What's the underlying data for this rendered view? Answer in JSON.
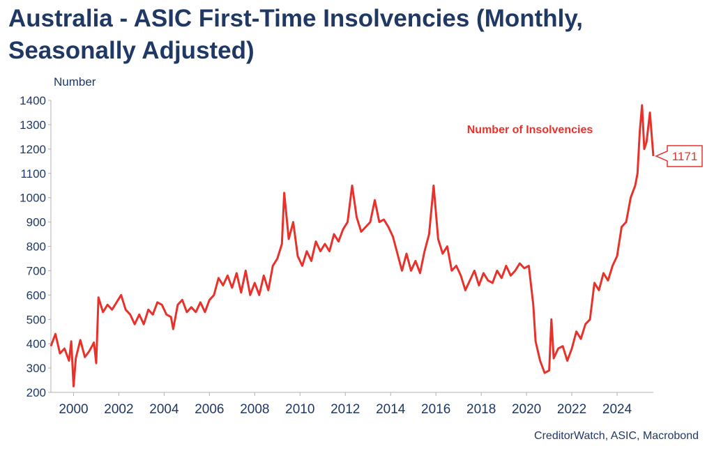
{
  "title": "Australia - ASIC First-Time Insolvencies (Monthly, Seasonally Adjusted)",
  "source": "CreditorWatch, ASIC, Macrobond",
  "colors": {
    "series": "#e8312a",
    "text": "#1f3864",
    "axis": "#b0b0b0"
  },
  "chart_data": {
    "type": "line",
    "ylabel": "Number",
    "ylim": [
      200,
      1400
    ],
    "yticks": [
      "200",
      "300",
      "400",
      "500",
      "600",
      "700",
      "800",
      "900",
      "1000",
      "1100",
      "1200",
      "1300",
      "1400"
    ],
    "xlim": [
      1999.0,
      2025.6
    ],
    "xticks": [
      "2000",
      "2002",
      "2004",
      "2006",
      "2008",
      "2010",
      "2012",
      "2014",
      "2016",
      "2018",
      "2020",
      "2022",
      "2024"
    ],
    "grid": false,
    "series": [
      {
        "name": "Number of Insolvencies",
        "last_value_label": "1171",
        "points": [
          [
            1999.0,
            390
          ],
          [
            1999.2,
            440
          ],
          [
            1999.4,
            360
          ],
          [
            1999.6,
            380
          ],
          [
            1999.8,
            330
          ],
          [
            1999.9,
            410
          ],
          [
            2000.0,
            225
          ],
          [
            2000.1,
            340
          ],
          [
            2000.3,
            415
          ],
          [
            2000.5,
            345
          ],
          [
            2000.7,
            370
          ],
          [
            2000.9,
            405
          ],
          [
            2001.0,
            320
          ],
          [
            2001.1,
            590
          ],
          [
            2001.3,
            530
          ],
          [
            2001.5,
            560
          ],
          [
            2001.7,
            540
          ],
          [
            2001.9,
            570
          ],
          [
            2002.1,
            600
          ],
          [
            2002.3,
            540
          ],
          [
            2002.5,
            520
          ],
          [
            2002.7,
            480
          ],
          [
            2002.9,
            520
          ],
          [
            2003.1,
            480
          ],
          [
            2003.3,
            540
          ],
          [
            2003.5,
            520
          ],
          [
            2003.7,
            570
          ],
          [
            2003.9,
            560
          ],
          [
            2004.1,
            520
          ],
          [
            2004.3,
            510
          ],
          [
            2004.4,
            460
          ],
          [
            2004.6,
            560
          ],
          [
            2004.8,
            580
          ],
          [
            2005.0,
            530
          ],
          [
            2005.2,
            550
          ],
          [
            2005.4,
            530
          ],
          [
            2005.6,
            570
          ],
          [
            2005.8,
            530
          ],
          [
            2006.0,
            580
          ],
          [
            2006.2,
            600
          ],
          [
            2006.4,
            670
          ],
          [
            2006.6,
            640
          ],
          [
            2006.8,
            680
          ],
          [
            2007.0,
            630
          ],
          [
            2007.2,
            690
          ],
          [
            2007.4,
            610
          ],
          [
            2007.6,
            700
          ],
          [
            2007.8,
            600
          ],
          [
            2008.0,
            650
          ],
          [
            2008.2,
            600
          ],
          [
            2008.4,
            680
          ],
          [
            2008.6,
            620
          ],
          [
            2008.8,
            720
          ],
          [
            2009.0,
            750
          ],
          [
            2009.2,
            810
          ],
          [
            2009.3,
            1020
          ],
          [
            2009.5,
            830
          ],
          [
            2009.7,
            900
          ],
          [
            2009.9,
            760
          ],
          [
            2010.1,
            720
          ],
          [
            2010.3,
            780
          ],
          [
            2010.5,
            740
          ],
          [
            2010.7,
            820
          ],
          [
            2010.9,
            780
          ],
          [
            2011.1,
            810
          ],
          [
            2011.3,
            780
          ],
          [
            2011.5,
            850
          ],
          [
            2011.7,
            820
          ],
          [
            2011.9,
            870
          ],
          [
            2012.1,
            900
          ],
          [
            2012.3,
            1050
          ],
          [
            2012.5,
            920
          ],
          [
            2012.7,
            860
          ],
          [
            2012.9,
            880
          ],
          [
            2013.1,
            900
          ],
          [
            2013.3,
            990
          ],
          [
            2013.5,
            900
          ],
          [
            2013.7,
            910
          ],
          [
            2013.9,
            880
          ],
          [
            2014.1,
            840
          ],
          [
            2014.3,
            770
          ],
          [
            2014.5,
            700
          ],
          [
            2014.7,
            770
          ],
          [
            2014.9,
            700
          ],
          [
            2015.1,
            740
          ],
          [
            2015.3,
            690
          ],
          [
            2015.5,
            780
          ],
          [
            2015.7,
            850
          ],
          [
            2015.9,
            1050
          ],
          [
            2016.1,
            830
          ],
          [
            2016.3,
            770
          ],
          [
            2016.5,
            800
          ],
          [
            2016.7,
            700
          ],
          [
            2016.9,
            720
          ],
          [
            2017.1,
            680
          ],
          [
            2017.3,
            620
          ],
          [
            2017.5,
            660
          ],
          [
            2017.7,
            700
          ],
          [
            2017.9,
            640
          ],
          [
            2018.1,
            690
          ],
          [
            2018.3,
            660
          ],
          [
            2018.5,
            650
          ],
          [
            2018.7,
            700
          ],
          [
            2018.9,
            670
          ],
          [
            2019.1,
            720
          ],
          [
            2019.3,
            680
          ],
          [
            2019.5,
            700
          ],
          [
            2019.7,
            730
          ],
          [
            2019.9,
            710
          ],
          [
            2020.1,
            720
          ],
          [
            2020.3,
            560
          ],
          [
            2020.4,
            410
          ],
          [
            2020.6,
            330
          ],
          [
            2020.8,
            280
          ],
          [
            2021.0,
            290
          ],
          [
            2021.1,
            500
          ],
          [
            2021.2,
            340
          ],
          [
            2021.4,
            380
          ],
          [
            2021.6,
            390
          ],
          [
            2021.8,
            330
          ],
          [
            2022.0,
            380
          ],
          [
            2022.2,
            450
          ],
          [
            2022.4,
            420
          ],
          [
            2022.6,
            480
          ],
          [
            2022.8,
            500
          ],
          [
            2023.0,
            650
          ],
          [
            2023.2,
            620
          ],
          [
            2023.4,
            690
          ],
          [
            2023.6,
            660
          ],
          [
            2023.8,
            720
          ],
          [
            2024.0,
            760
          ],
          [
            2024.2,
            880
          ],
          [
            2024.4,
            900
          ],
          [
            2024.6,
            1000
          ],
          [
            2024.8,
            1050
          ],
          [
            2024.9,
            1100
          ],
          [
            2025.0,
            1270
          ],
          [
            2025.1,
            1380
          ],
          [
            2025.2,
            1200
          ],
          [
            2025.3,
            1230
          ],
          [
            2025.45,
            1350
          ],
          [
            2025.6,
            1171
          ]
        ]
      }
    ]
  }
}
